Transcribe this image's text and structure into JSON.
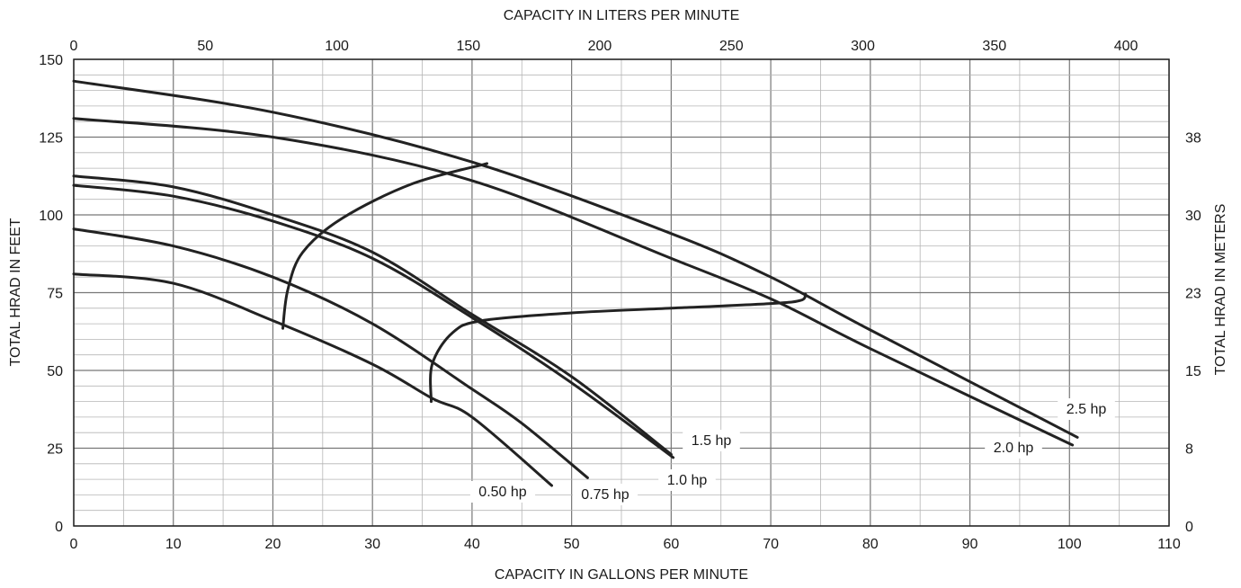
{
  "chart_data": {
    "type": "line",
    "title": "",
    "x_bottom": {
      "label": "CAPACITY IN GALLONS PER MINUTE",
      "range": [
        0,
        110
      ],
      "ticks": [
        0,
        10,
        20,
        30,
        40,
        50,
        60,
        70,
        80,
        90,
        100,
        110
      ]
    },
    "x_top": {
      "label": "CAPACITY IN LITERS PER MINUTE",
      "ticks": [
        "0",
        "50",
        "100",
        "150",
        "200",
        "250",
        "300",
        "350",
        "400"
      ],
      "tick_gpm": [
        0,
        13.21,
        26.42,
        39.63,
        52.83,
        66.04,
        79.25,
        92.46,
        105.67
      ]
    },
    "y_left": {
      "label": "TOTAL HRAD IN FEET",
      "range": [
        0,
        150
      ],
      "ticks": [
        0,
        25,
        50,
        75,
        100,
        125,
        150
      ]
    },
    "y_right": {
      "label": "TOTAL HRAD IN METERS",
      "ticks": [
        "0",
        "8",
        "15",
        "23",
        "30",
        "38"
      ],
      "tick_feet": [
        0,
        25,
        50,
        75,
        100,
        125
      ]
    },
    "grid": true,
    "series": [
      {
        "name": "0.50 hp",
        "x": [
          0,
          10,
          20,
          30,
          36,
          40,
          48
        ],
        "y": [
          81,
          78,
          66,
          52,
          41,
          35,
          13
        ]
      },
      {
        "name": "0.75 hp",
        "x": [
          0,
          10,
          20,
          30,
          40,
          45,
          51.6
        ],
        "y": [
          95.5,
          90,
          80,
          65,
          44,
          33,
          15.5
        ]
      },
      {
        "name": "1.0 hp",
        "x": [
          0,
          10,
          20,
          30,
          40,
          50,
          60.2
        ],
        "y": [
          109.5,
          106,
          98,
          86,
          67,
          46,
          22
        ]
      },
      {
        "name": "1.5 hp",
        "x": [
          0,
          10,
          20,
          30,
          40,
          50,
          60
        ],
        "y": [
          112.5,
          109,
          100,
          88,
          68,
          48,
          23
        ]
      },
      {
        "name": "2.0 hp",
        "x": [
          0,
          20,
          40,
          60,
          70,
          80,
          100.3
        ],
        "y": [
          131,
          125,
          111,
          86,
          73,
          57,
          26
        ]
      },
      {
        "name": "2.5 hp",
        "x": [
          0,
          20,
          40,
          60,
          70,
          80,
          100.8
        ],
        "y": [
          143,
          133,
          117,
          94,
          80,
          63,
          28.5
        ]
      }
    ],
    "boundary_curves": [
      {
        "x": [
          21,
          21.5,
          23,
          27,
          34,
          41.5
        ],
        "y": [
          63.5,
          76,
          88,
          99,
          110,
          116.5
        ]
      },
      {
        "x": [
          35.9,
          36,
          38,
          41,
          50,
          60,
          70,
          73,
          73.5
        ],
        "y": [
          40,
          52,
          62,
          66,
          68.5,
          70,
          71.5,
          72.5,
          74.5
        ]
      }
    ],
    "labels": [
      "0.50 hp",
      "0.75 hp",
      "1.0 hp",
      "1.5 hp",
      "2.0 hp",
      "2.5 hp"
    ]
  }
}
